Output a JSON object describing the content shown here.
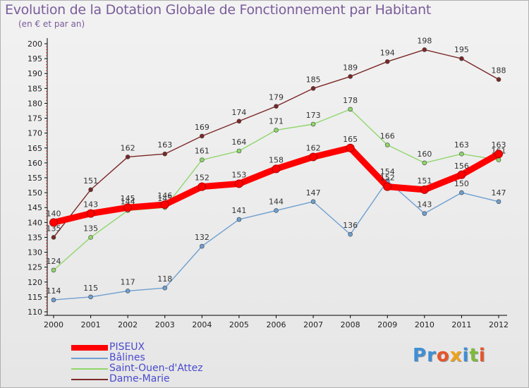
{
  "title": "Evolution de la Dotation Globale de Fonctionnement par Habitant",
  "subtitle": "(en € et par an)",
  "logo": {
    "text": "Proxiti",
    "letters": [
      {
        "ch": "P",
        "color": "#3f8fd6"
      },
      {
        "ch": "r",
        "color": "#3f8fd6"
      },
      {
        "ch": "o",
        "color": "#e8542a"
      },
      {
        "ch": "x",
        "color": "#f0a21a"
      },
      {
        "ch": "i",
        "color": "#3f8fd6"
      },
      {
        "ch": "t",
        "color": "#7dbb3a"
      },
      {
        "ch": "i",
        "color": "#e8542a"
      }
    ]
  },
  "chart_data": {
    "type": "line",
    "title": "Evolution de la Dotation Globale de Fonctionnement par Habitant",
    "ylabel": "(en € et par an)",
    "xlabel": "",
    "x": [
      "2000",
      "2001",
      "2002",
      "2003",
      "2004",
      "2005",
      "2006",
      "2007",
      "2008",
      "2009",
      "2010",
      "2011",
      "2012"
    ],
    "ylim": [
      110,
      200
    ],
    "yticks": [
      110,
      115,
      120,
      125,
      130,
      135,
      140,
      145,
      150,
      155,
      160,
      165,
      170,
      175,
      180,
      185,
      190,
      195,
      200
    ],
    "grid": false,
    "legend_position": "bottom-left",
    "series": [
      {
        "name": "Dame-Marie",
        "color": "#7b2727",
        "values": [
          135,
          151,
          162,
          163,
          169,
          174,
          179,
          185,
          189,
          194,
          198,
          195,
          188
        ]
      },
      {
        "name": "Saint-Ouen-d'Attez",
        "color": "#8fd66b",
        "values": [
          124,
          135,
          144,
          145,
          161,
          164,
          171,
          173,
          178,
          166,
          160,
          163,
          161
        ]
      },
      {
        "name": "Bâlines",
        "color": "#6e9fd0",
        "values": [
          114,
          115,
          117,
          118,
          132,
          141,
          144,
          147,
          136,
          154,
          143,
          150,
          147
        ]
      },
      {
        "name": "PISEUX",
        "color": "#ff0000",
        "values": [
          140,
          143,
          145,
          146,
          152,
          153,
          158,
          162,
          165,
          152,
          151,
          156,
          163
        ]
      }
    ],
    "legend": [
      "PISEUX",
      "Bâlines",
      "Saint-Ouen-d'Attez",
      "Dame-Marie"
    ]
  },
  "colors": {
    "axis": "#000000",
    "tick_label": "#222222",
    "data_label": "#333333",
    "title": "#7a5c9a",
    "legend_text": "#4a4ad0"
  }
}
